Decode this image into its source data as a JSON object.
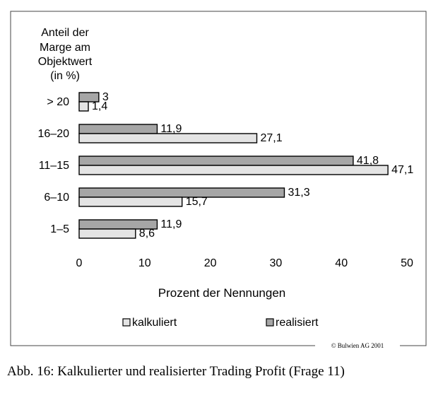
{
  "chart_data": {
    "type": "bar",
    "orientation": "horizontal",
    "yaxis_title_lines": [
      "Anteil der",
      "Marge am",
      "Objektwert",
      "(in %)"
    ],
    "categories": [
      "> 20",
      "16–20",
      "11–15",
      "6–10",
      "1–5"
    ],
    "series": [
      {
        "name": "realisiert",
        "values": [
          3,
          11.9,
          41.8,
          31.3,
          11.9
        ],
        "value_labels": [
          "3",
          "11,9",
          "41,8",
          "31,3",
          "11,9"
        ],
        "color": "#a6a6a6"
      },
      {
        "name": "kalkuliert",
        "values": [
          1.4,
          27.1,
          47.1,
          15.7,
          8.6
        ],
        "value_labels": [
          "1,4",
          "27,1",
          "47,1",
          "15,7",
          "8,6"
        ],
        "color": "#e4e4e4"
      }
    ],
    "xlim": [
      0,
      50
    ],
    "xticks": [
      "0",
      "10",
      "20",
      "30",
      "40",
      "50"
    ],
    "xlabel": "Prozent der Nennungen",
    "legend": [
      {
        "label": "kalkuliert",
        "color": "#e4e4e4"
      },
      {
        "label": "realisiert",
        "color": "#a6a6a6"
      }
    ],
    "legend_position": "bottom",
    "grid": false
  },
  "credit": "© Bulwien AG 2001",
  "caption": "Abb. 16: Kalkulierter und realisierter Trading Profit (Frage 11)"
}
